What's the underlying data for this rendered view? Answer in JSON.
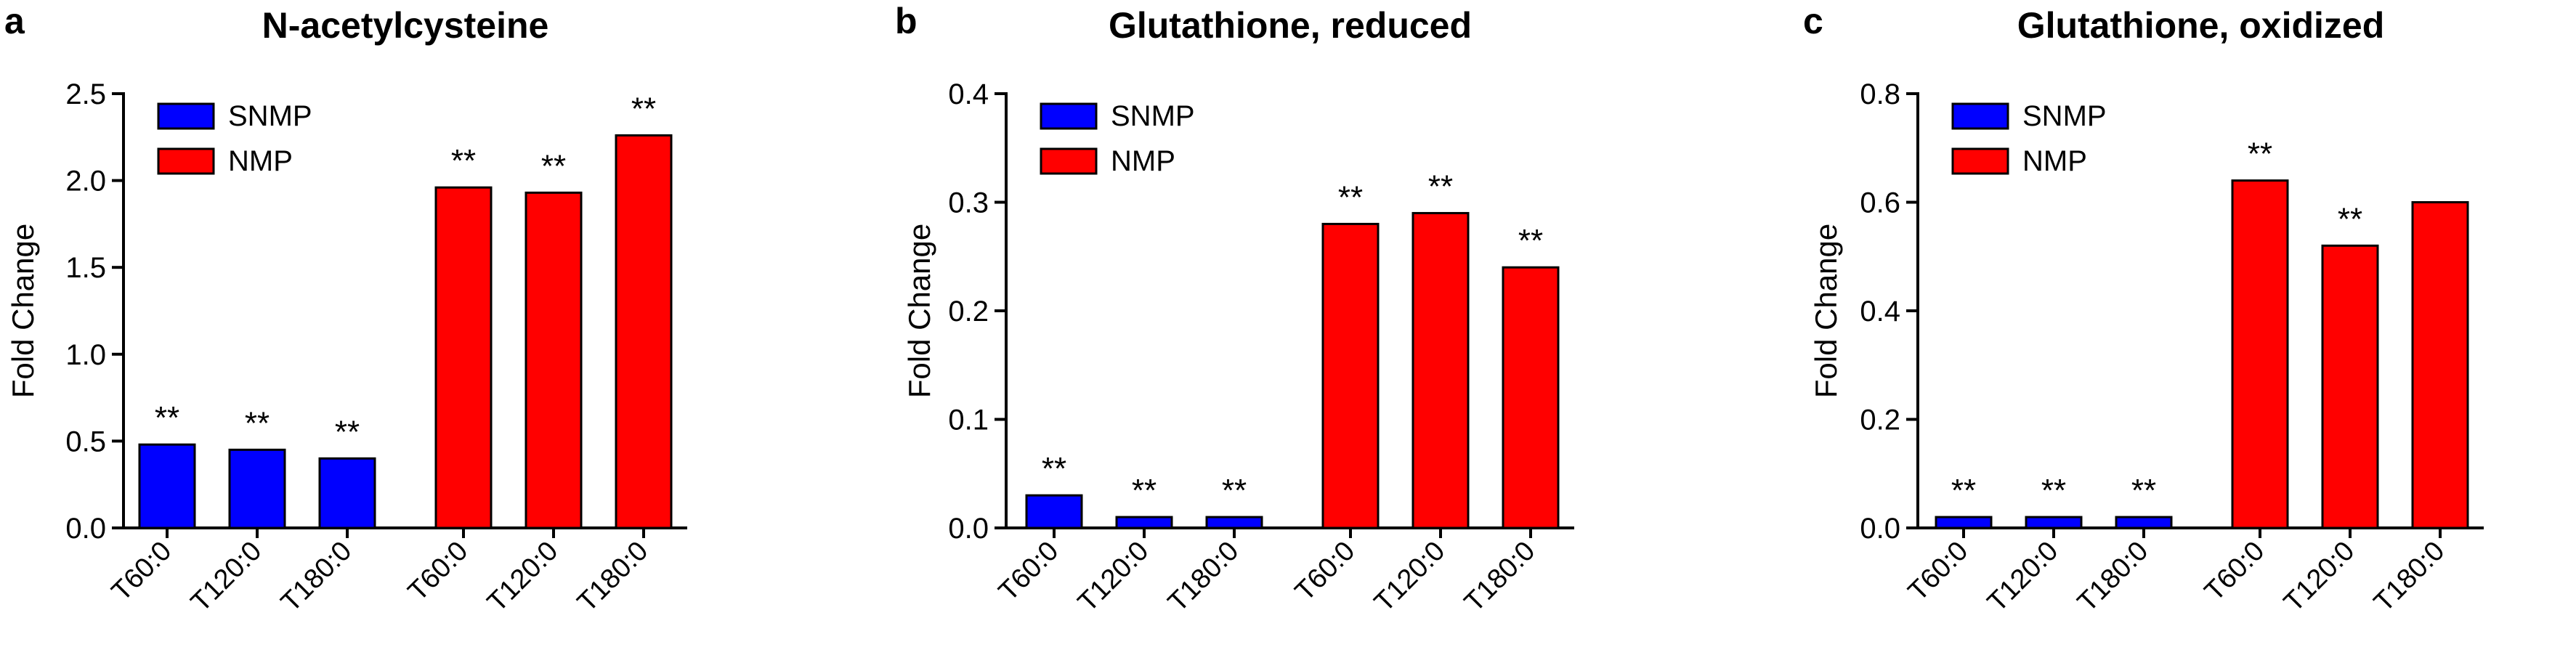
{
  "colors": {
    "snmp": "#0000ff",
    "nmp": "#ff0000",
    "axis": "#000000"
  },
  "chart_data": [
    {
      "type": "bar",
      "panel": "a",
      "title": "N-acetylcysteine",
      "ylabel": "Fold Change",
      "ylim": [
        0,
        2.5
      ],
      "yticks": [
        "0.0",
        "0.5",
        "1.0",
        "1.5",
        "2.0",
        "2.5"
      ],
      "legend": [
        "SNMP",
        "NMP"
      ],
      "legend_position": "top-left",
      "series": [
        {
          "name": "SNMP",
          "categories": [
            "T60:0",
            "T120:0",
            "T180:0"
          ],
          "values": [
            0.48,
            0.45,
            0.4
          ],
          "significance": [
            "**",
            "**",
            "**"
          ]
        },
        {
          "name": "NMP",
          "categories": [
            "T60:0",
            "T120:0",
            "T180:0"
          ],
          "values": [
            1.96,
            1.93,
            2.26
          ],
          "significance": [
            "**",
            "**",
            "**"
          ]
        }
      ]
    },
    {
      "type": "bar",
      "panel": "b",
      "title": "Glutathione, reduced",
      "ylabel": "Fold Change",
      "ylim": [
        0,
        0.4
      ],
      "yticks": [
        "0.0",
        "0.1",
        "0.2",
        "0.3",
        "0.4"
      ],
      "legend": [
        "SNMP",
        "NMP"
      ],
      "legend_position": "top-left",
      "series": [
        {
          "name": "SNMP",
          "categories": [
            "T60:0",
            "T120:0",
            "T180:0"
          ],
          "values": [
            0.03,
            0.01,
            0.01
          ],
          "significance": [
            "**",
            "**",
            "**"
          ]
        },
        {
          "name": "NMP",
          "categories": [
            "T60:0",
            "T120:0",
            "T180:0"
          ],
          "values": [
            0.28,
            0.29,
            0.24
          ],
          "significance": [
            "**",
            "**",
            "**"
          ]
        }
      ]
    },
    {
      "type": "bar",
      "panel": "c",
      "title": "Glutathione, oxidized",
      "ylabel": "Fold Change",
      "ylim": [
        0,
        0.8
      ],
      "yticks": [
        "0.0",
        "0.2",
        "0.4",
        "0.6",
        "0.8"
      ],
      "legend": [
        "SNMP",
        "NMP"
      ],
      "legend_position": "top-left",
      "series": [
        {
          "name": "SNMP",
          "categories": [
            "T60:0",
            "T120:0",
            "T180:0"
          ],
          "values": [
            0.02,
            0.02,
            0.02
          ],
          "significance": [
            "**",
            "**",
            "**"
          ]
        },
        {
          "name": "NMP",
          "categories": [
            "T60:0",
            "T120:0",
            "T180:0"
          ],
          "values": [
            0.64,
            0.52,
            0.6
          ],
          "significance": [
            "**",
            "**",
            ""
          ]
        }
      ]
    }
  ]
}
